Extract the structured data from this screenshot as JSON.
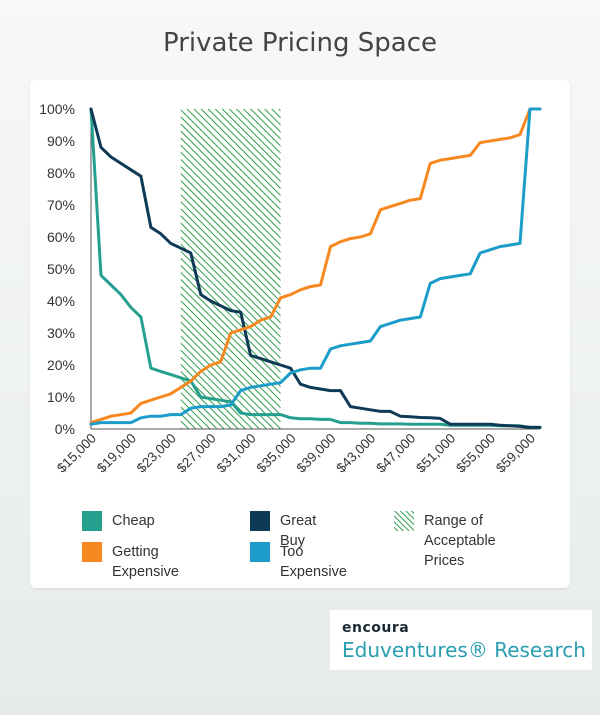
{
  "chart_data": {
    "type": "line",
    "title": "Private Pricing Space",
    "x": [
      15000,
      16000,
      17000,
      18000,
      19000,
      20000,
      21000,
      22000,
      23000,
      24000,
      25000,
      26000,
      27000,
      28000,
      29000,
      30000,
      31000,
      32000,
      33000,
      34000,
      35000,
      36000,
      37000,
      38000,
      39000,
      40000,
      41000,
      42000,
      43000,
      44000,
      45000,
      46000,
      47000,
      48000,
      49000,
      50000,
      51000,
      52000,
      53000,
      54000,
      55000,
      56000,
      57000,
      58000,
      59000,
      60000
    ],
    "x_tick_labels": [
      "$15,000",
      "$19,000",
      "$23,000",
      "$27,000",
      "$31,000",
      "$35,000",
      "$39,000",
      "$43,000",
      "$47,000",
      "$51,000",
      "$55,000",
      "$59,000"
    ],
    "x_tick_values": [
      15000,
      19000,
      23000,
      27000,
      31000,
      35000,
      39000,
      43000,
      47000,
      51000,
      55000,
      59000
    ],
    "y_tick_labels": [
      "0%",
      "10%",
      "20%",
      "30%",
      "40%",
      "50%",
      "60%",
      "70%",
      "80%",
      "90%",
      "100%"
    ],
    "ylim": [
      0,
      100
    ],
    "xlim": [
      15000,
      60000
    ],
    "grid": false,
    "series": [
      {
        "name": "Cheap",
        "color": "#26a08e",
        "values": [
          100,
          48,
          45,
          42,
          38,
          35,
          19,
          18,
          17,
          16,
          15,
          10,
          9.5,
          9,
          8.5,
          5,
          4.5,
          4.5,
          4.5,
          4.5,
          3.5,
          3.2,
          3.2,
          3,
          3,
          2,
          2,
          1.8,
          1.8,
          1.6,
          1.6,
          1.6,
          1.5,
          1.5,
          1.5,
          1.5,
          1.2,
          1.2,
          1.2,
          1.2,
          1.2,
          1,
          1,
          1,
          0.5,
          0.5
        ]
      },
      {
        "name": "Great Buy",
        "color": "#0e3a57",
        "values": [
          100,
          88,
          85,
          83,
          81,
          79,
          63,
          61,
          58,
          56.5,
          55,
          42,
          40,
          38.5,
          37,
          36.5,
          23,
          22,
          21,
          20,
          19,
          14,
          13,
          12.5,
          12,
          12,
          7,
          6.5,
          6,
          5.5,
          5.5,
          4,
          3.8,
          3.6,
          3.5,
          3.3,
          1.5,
          1.5,
          1.5,
          1.5,
          1.5,
          1.2,
          1,
          0.8,
          0.5,
          0.5
        ]
      },
      {
        "name": "Getting Expensive",
        "color": "#f7881f",
        "values": [
          2,
          3,
          4,
          4.5,
          5,
          8,
          9,
          10,
          11,
          13,
          15,
          18,
          20,
          21,
          30,
          31,
          32,
          34,
          35,
          41,
          42,
          43.5,
          44.5,
          45,
          57,
          58.5,
          59.5,
          60,
          61,
          68.5,
          69.5,
          70.5,
          71.5,
          72,
          83,
          84,
          84.5,
          85,
          85.5,
          89.5,
          90,
          90.5,
          91,
          92,
          100,
          100
        ]
      },
      {
        "name": "Too Expensive",
        "color": "#1c9cc8",
        "values": [
          1.5,
          2,
          2,
          2,
          2,
          3.5,
          4,
          4,
          4.5,
          4.5,
          6.5,
          7,
          7,
          7,
          7.5,
          12,
          13,
          13.5,
          14,
          14.5,
          17.5,
          18.5,
          19,
          19,
          25,
          26,
          26.5,
          27,
          27.5,
          32,
          33,
          34,
          34.5,
          35,
          45.5,
          47,
          47.5,
          48,
          48.5,
          55,
          56,
          57,
          57.5,
          58,
          100,
          100
        ]
      }
    ],
    "shaded_range": {
      "name": "Range of Acceptable Prices",
      "x_start": 24000,
      "x_end": 34000,
      "color": "#2f9e4f"
    }
  },
  "legend": {
    "cheap": "Cheap",
    "great_buy": "Great Buy",
    "range_line1": "Range of",
    "range_line2": "Acceptable Prices",
    "getting_expensive": "Getting Expensive",
    "too_expensive": "Too Expensive"
  },
  "brand": {
    "logo_text": "encoura",
    "subtitle": "Eduventures® Research"
  }
}
